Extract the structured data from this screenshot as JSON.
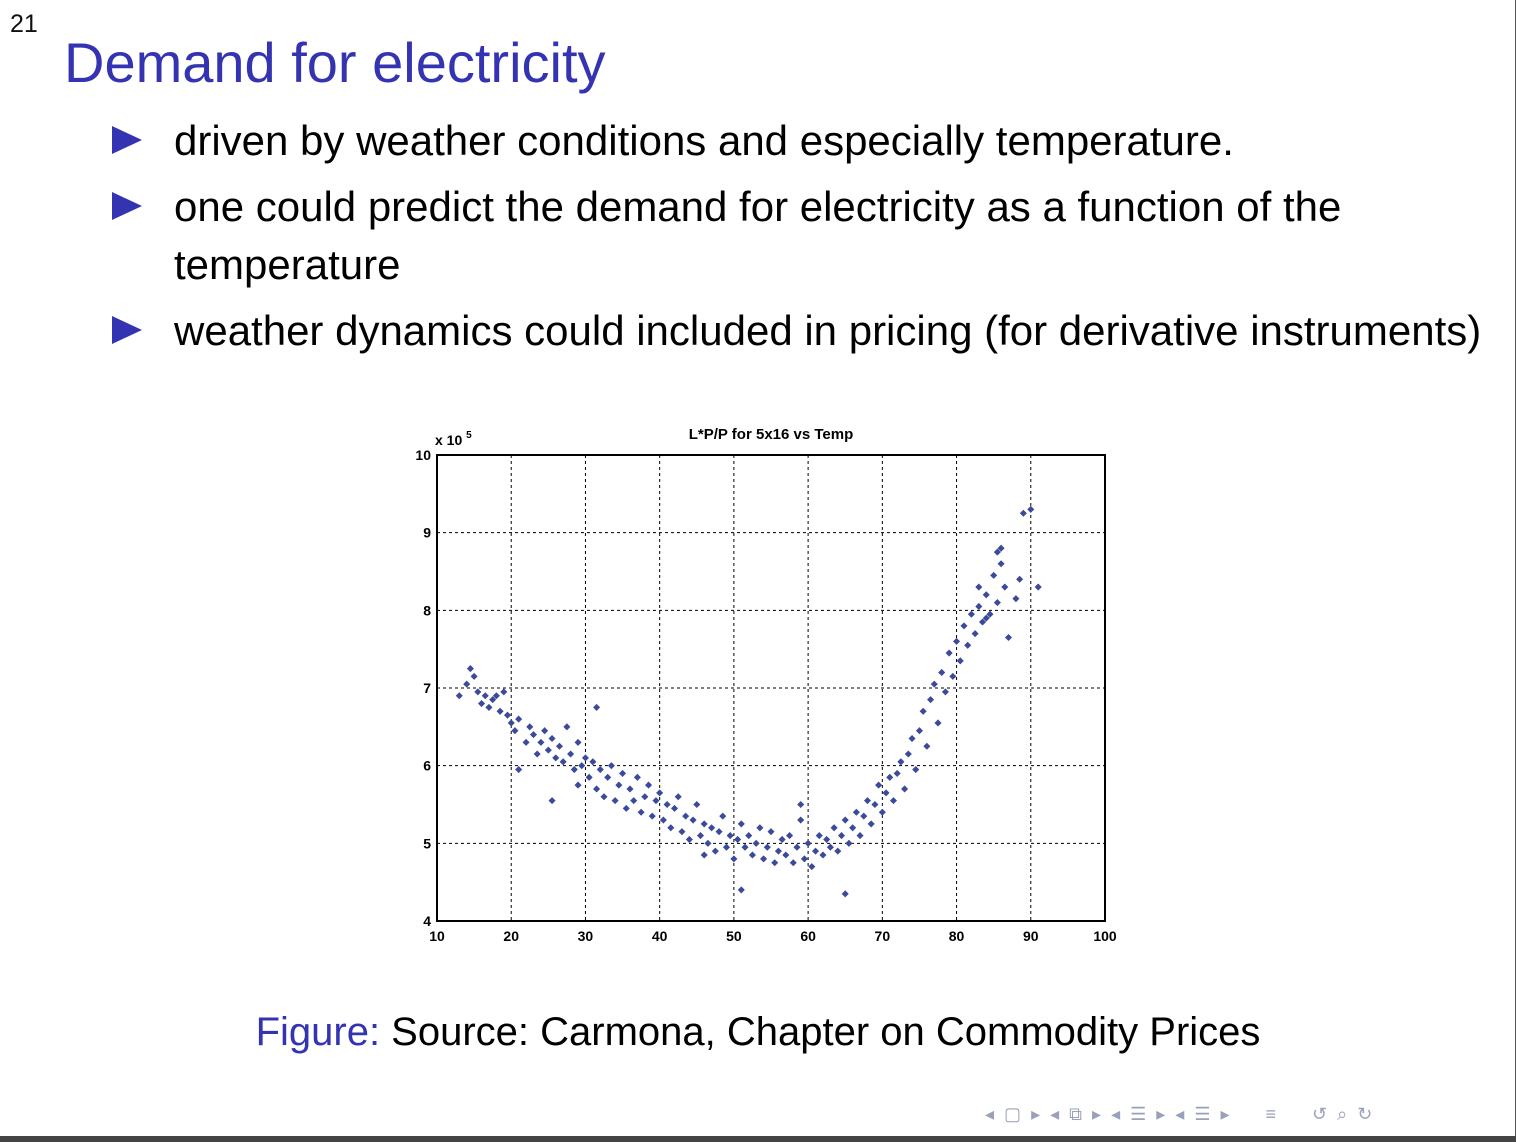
{
  "page": {
    "number": "21"
  },
  "slide": {
    "title": "Demand for electricity",
    "bullets": [
      "driven by weather conditions and especially temperature.",
      "one could predict the demand for electricity as a function of the temperature",
      "weather dynamics could included in pricing (for derivative instruments)"
    ]
  },
  "figure": {
    "caption_label": "Figure:",
    "caption_text": " Source: Carmona, Chapter on Commodity Prices"
  },
  "chart_data": {
    "type": "scatter",
    "title": "L*P/P for 5x16 vs Temp",
    "xlabel": "",
    "ylabel": "",
    "y_multiplier": "x 10",
    "y_multiplier_exponent": "5",
    "xlim": [
      10,
      100
    ],
    "ylim": [
      4,
      10
    ],
    "xticks": [
      "10",
      "20",
      "30",
      "40",
      "50",
      "60",
      "70",
      "80",
      "90",
      "100"
    ],
    "yticks": [
      "4",
      "5",
      "6",
      "7",
      "8",
      "9",
      "10"
    ],
    "grid": true,
    "marker_color": "#3b4a9a",
    "series": [
      {
        "points": [
          [
            13,
            6.9
          ],
          [
            14,
            7.05
          ],
          [
            14.5,
            7.25
          ],
          [
            15,
            7.15
          ],
          [
            15.5,
            6.95
          ],
          [
            16,
            6.8
          ],
          [
            16.5,
            6.9
          ],
          [
            17,
            6.75
          ],
          [
            17.5,
            6.85
          ],
          [
            18,
            6.9
          ],
          [
            18.5,
            6.7
          ],
          [
            19,
            6.95
          ],
          [
            19.5,
            6.65
          ],
          [
            20,
            6.55
          ],
          [
            20.5,
            6.45
          ],
          [
            21,
            5.95
          ],
          [
            21,
            6.6
          ],
          [
            22,
            6.3
          ],
          [
            22.5,
            6.5
          ],
          [
            23,
            6.4
          ],
          [
            23.5,
            6.15
          ],
          [
            24,
            6.3
          ],
          [
            24.5,
            6.45
          ],
          [
            25,
            6.2
          ],
          [
            25.5,
            6.35
          ],
          [
            25.5,
            5.55
          ],
          [
            26,
            6.1
          ],
          [
            26.5,
            6.25
          ],
          [
            27,
            6.05
          ],
          [
            27.5,
            6.5
          ],
          [
            28,
            6.15
          ],
          [
            28.5,
            5.95
          ],
          [
            29,
            6.3
          ],
          [
            29,
            5.75
          ],
          [
            29.5,
            6.0
          ],
          [
            30,
            6.1
          ],
          [
            30.5,
            5.85
          ],
          [
            31,
            6.05
          ],
          [
            31.5,
            5.7
          ],
          [
            31.5,
            6.75
          ],
          [
            32,
            5.95
          ],
          [
            32.5,
            5.6
          ],
          [
            33,
            5.85
          ],
          [
            33.5,
            6.0
          ],
          [
            34,
            5.55
          ],
          [
            34.5,
            5.75
          ],
          [
            35,
            5.9
          ],
          [
            35.5,
            5.45
          ],
          [
            36,
            5.7
          ],
          [
            36.5,
            5.55
          ],
          [
            37,
            5.85
          ],
          [
            37.5,
            5.4
          ],
          [
            38,
            5.6
          ],
          [
            38.5,
            5.75
          ],
          [
            39,
            5.35
          ],
          [
            39.5,
            5.55
          ],
          [
            40,
            5.65
          ],
          [
            40.5,
            5.3
          ],
          [
            41,
            5.5
          ],
          [
            41.5,
            5.2
          ],
          [
            42,
            5.45
          ],
          [
            42.5,
            5.6
          ],
          [
            43,
            5.15
          ],
          [
            43.5,
            5.35
          ],
          [
            44,
            5.05
          ],
          [
            44.5,
            5.3
          ],
          [
            45,
            5.5
          ],
          [
            45.5,
            5.1
          ],
          [
            46,
            4.85
          ],
          [
            46,
            5.25
          ],
          [
            46.5,
            5.0
          ],
          [
            47,
            5.2
          ],
          [
            47.5,
            4.9
          ],
          [
            48,
            5.15
          ],
          [
            48.5,
            5.35
          ],
          [
            49,
            4.95
          ],
          [
            49.5,
            5.1
          ],
          [
            50,
            4.8
          ],
          [
            50.5,
            5.05
          ],
          [
            51,
            4.4
          ],
          [
            51,
            5.25
          ],
          [
            51.5,
            4.95
          ],
          [
            52,
            5.1
          ],
          [
            52.5,
            4.85
          ],
          [
            53,
            5.0
          ],
          [
            53.5,
            5.2
          ],
          [
            54,
            4.8
          ],
          [
            54.5,
            4.95
          ],
          [
            55,
            5.15
          ],
          [
            55.5,
            4.75
          ],
          [
            56,
            4.9
          ],
          [
            56.5,
            5.05
          ],
          [
            57,
            4.85
          ],
          [
            57.5,
            5.1
          ],
          [
            58,
            4.75
          ],
          [
            58.5,
            4.95
          ],
          [
            59,
            5.3
          ],
          [
            59,
            5.5
          ],
          [
            59.5,
            4.8
          ],
          [
            60,
            5.0
          ],
          [
            60.5,
            4.7
          ],
          [
            61,
            4.9
          ],
          [
            61.5,
            5.1
          ],
          [
            62,
            4.85
          ],
          [
            62.5,
            5.05
          ],
          [
            63,
            4.95
          ],
          [
            63.5,
            5.2
          ],
          [
            64,
            4.9
          ],
          [
            64.5,
            5.1
          ],
          [
            65,
            4.35
          ],
          [
            65,
            5.3
          ],
          [
            65.5,
            5.0
          ],
          [
            66,
            5.2
          ],
          [
            66.5,
            5.4
          ],
          [
            67,
            5.1
          ],
          [
            67.5,
            5.35
          ],
          [
            68,
            5.55
          ],
          [
            68.5,
            5.25
          ],
          [
            69,
            5.5
          ],
          [
            69.5,
            5.75
          ],
          [
            70,
            5.4
          ],
          [
            70.5,
            5.65
          ],
          [
            71,
            5.85
          ],
          [
            71.5,
            5.55
          ],
          [
            72,
            5.9
          ],
          [
            72.5,
            6.05
          ],
          [
            73,
            5.7
          ],
          [
            73.5,
            6.15
          ],
          [
            74,
            6.35
          ],
          [
            74.5,
            5.95
          ],
          [
            75,
            6.45
          ],
          [
            75.5,
            6.7
          ],
          [
            76,
            6.25
          ],
          [
            76.5,
            6.85
          ],
          [
            77,
            7.05
          ],
          [
            77.5,
            6.55
          ],
          [
            78,
            7.2
          ],
          [
            78.5,
            6.95
          ],
          [
            79,
            7.45
          ],
          [
            79.5,
            7.15
          ],
          [
            80,
            7.6
          ],
          [
            80.5,
            7.35
          ],
          [
            81,
            7.8
          ],
          [
            81.5,
            7.55
          ],
          [
            82,
            7.95
          ],
          [
            82.5,
            7.7
          ],
          [
            83,
            8.05
          ],
          [
            83.5,
            7.85
          ],
          [
            84,
            8.2
          ],
          [
            84.5,
            7.95
          ],
          [
            85,
            8.45
          ],
          [
            85.5,
            8.1
          ],
          [
            86,
            8.6
          ],
          [
            86.5,
            8.3
          ],
          [
            87,
            7.65
          ],
          [
            88,
            8.15
          ],
          [
            88.5,
            8.4
          ],
          [
            89,
            9.25
          ],
          [
            90,
            9.3
          ],
          [
            91,
            8.3
          ],
          [
            85.5,
            8.75
          ],
          [
            86,
            8.8
          ],
          [
            84,
            7.9
          ],
          [
            83,
            8.3
          ]
        ]
      }
    ]
  },
  "nav": {
    "icons": [
      "nav-prev-icon",
      "frame-icon",
      "nav-next-icon",
      "nav-prev-icon",
      "subsection-icon",
      "nav-next-icon",
      "nav-prev-icon",
      "section-icon",
      "nav-next-icon",
      "nav-prev-icon",
      "section-icon",
      "nav-next-icon",
      "align-icon",
      "search-back-icon",
      "search-icon",
      "search-forward-icon"
    ]
  }
}
